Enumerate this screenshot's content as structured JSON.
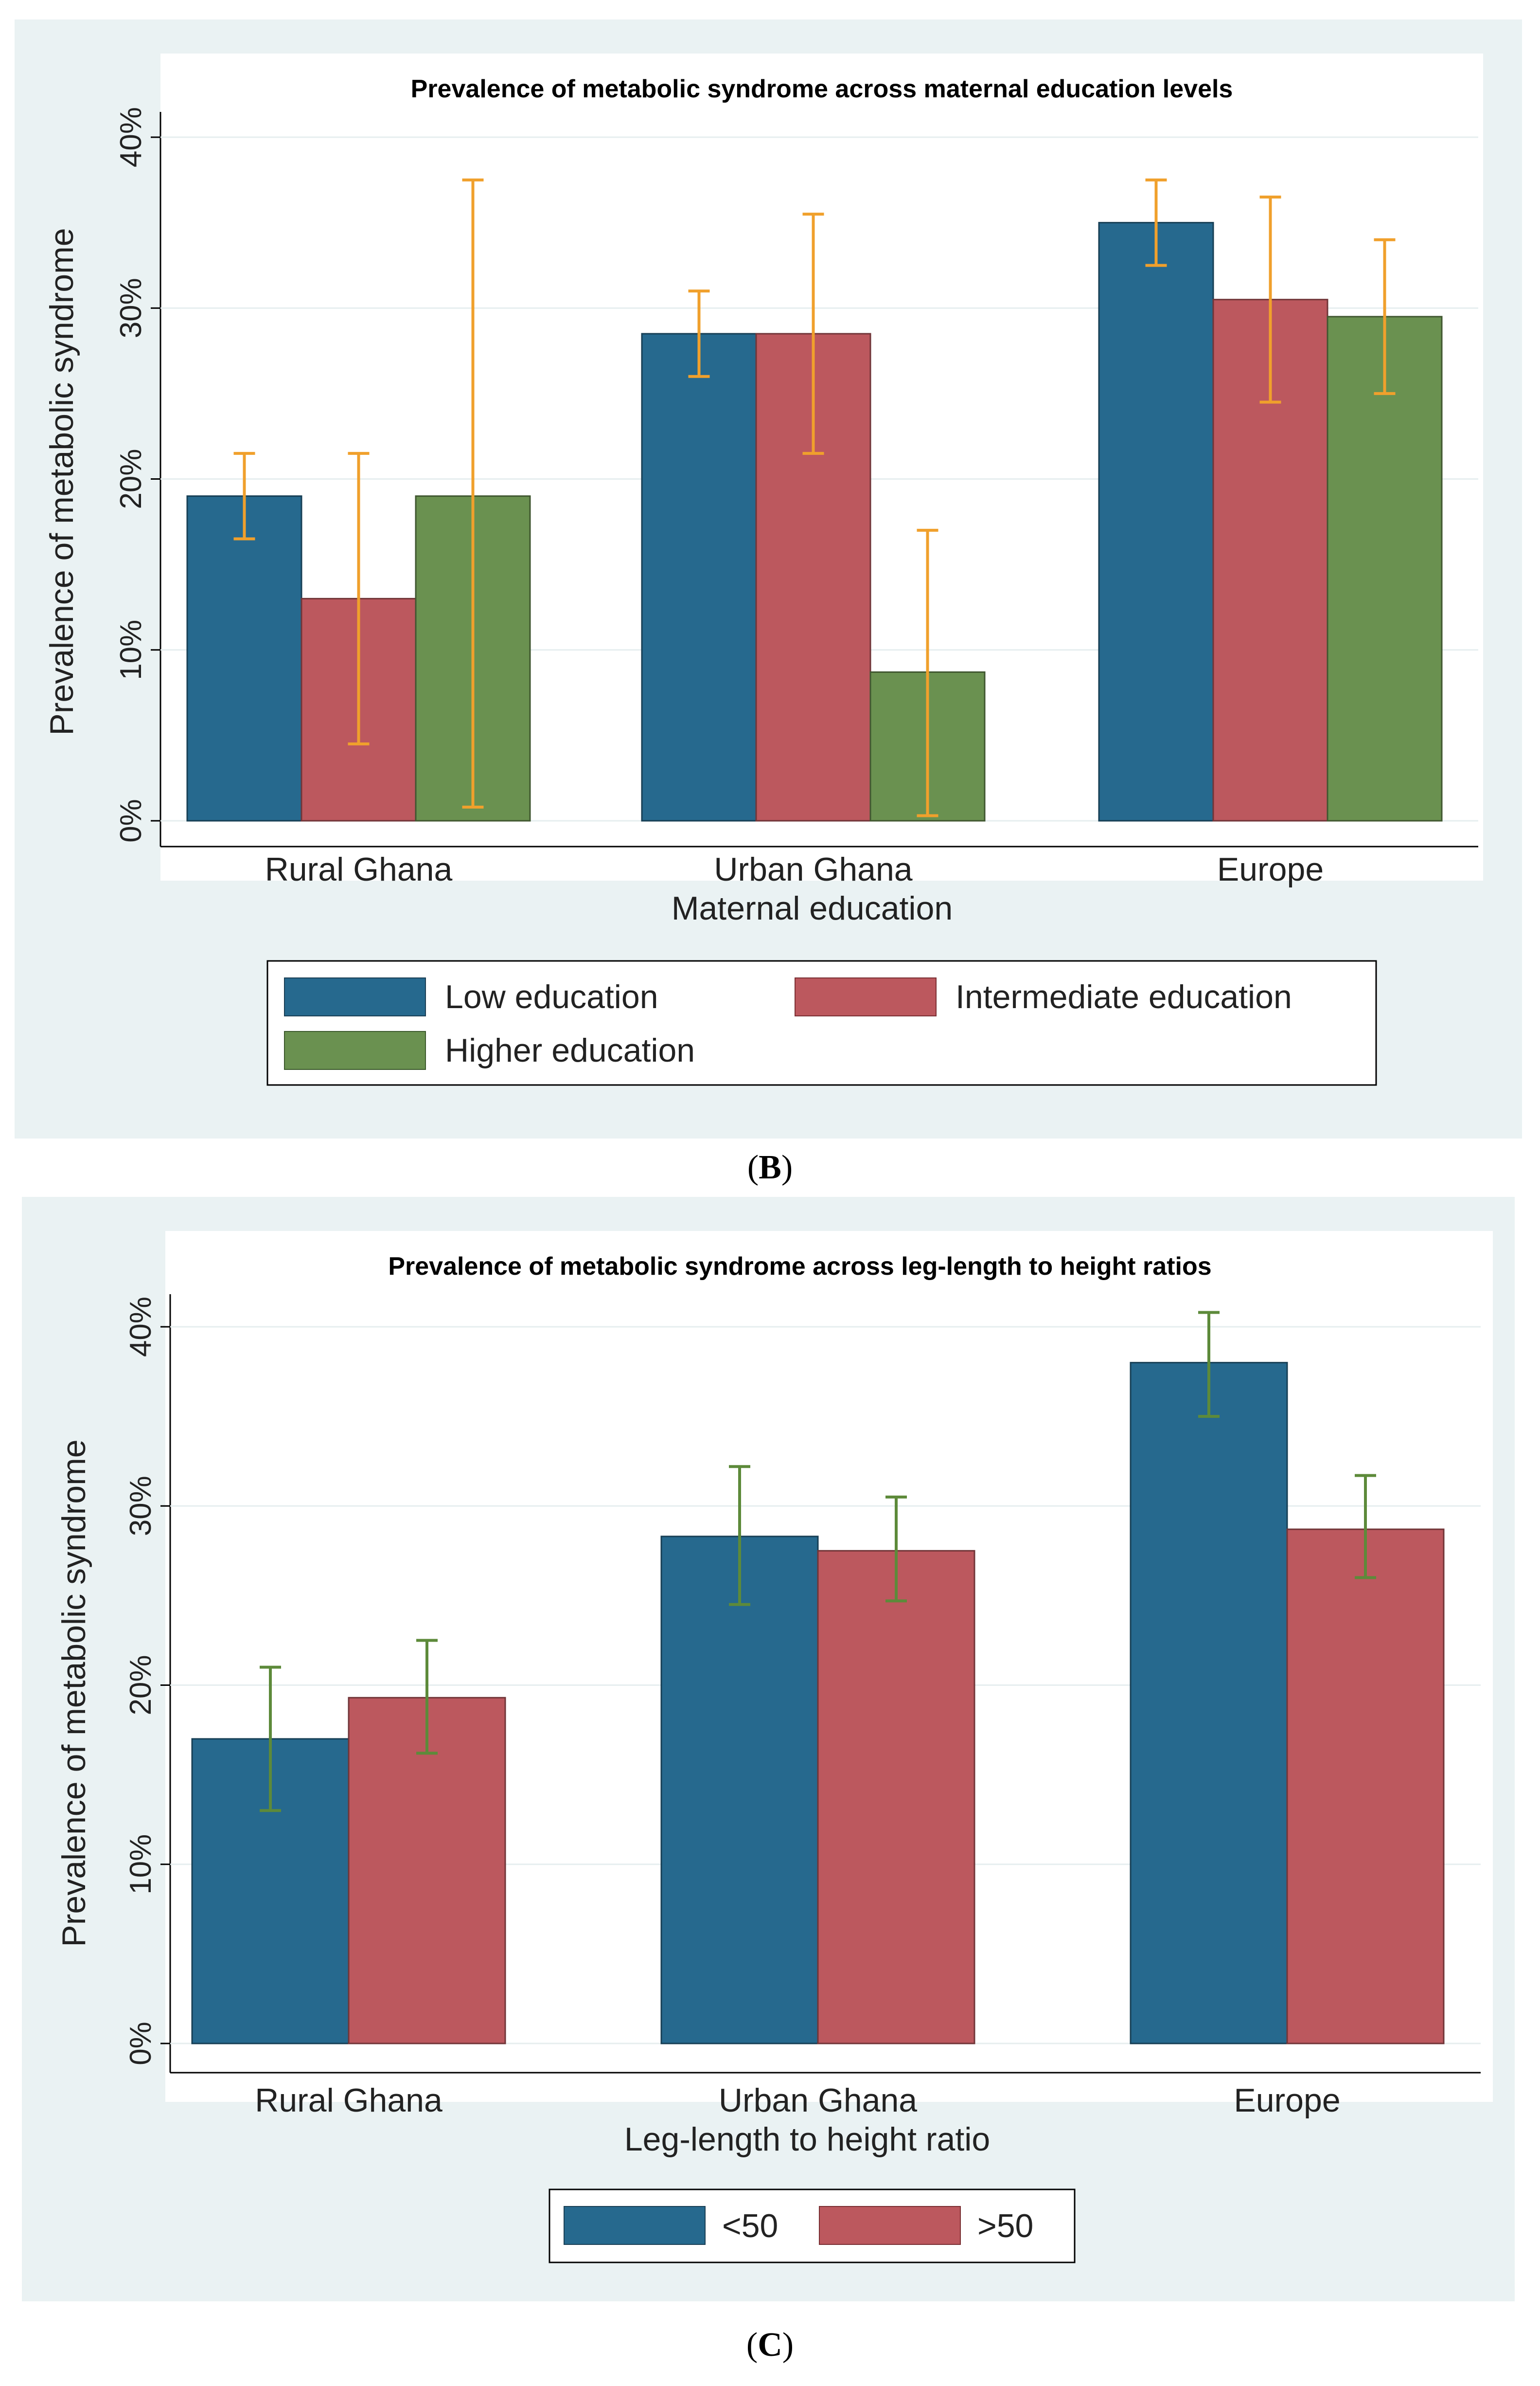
{
  "figure_captions": [
    {
      "letter": "B"
    },
    {
      "letter": "C"
    }
  ],
  "chart_data": [
    {
      "type": "bar",
      "title": "Prevalence of metabolic syndrome across maternal education levels",
      "xlabel": "Maternal education",
      "ylabel": "Prevalence of metabolic syndrome",
      "ylim": [
        0,
        40
      ],
      "yticks": [
        "0%",
        "10%",
        "20%",
        "30%",
        "40%"
      ],
      "grid": true,
      "categories": [
        "Rural Ghana",
        "Urban Ghana",
        "Europe"
      ],
      "series": [
        {
          "name": "Low education",
          "color": "#26698e",
          "values": [
            19,
            28.5,
            35
          ],
          "ci_low": [
            16.5,
            26,
            32.5
          ],
          "ci_high": [
            21.5,
            31,
            37.5
          ]
        },
        {
          "name": "Intermediate education",
          "color": "#bc585e",
          "values": [
            13,
            28.5,
            30.5
          ],
          "ci_low": [
            4.5,
            21.5,
            24.5
          ],
          "ci_high": [
            21.5,
            35.5,
            36.5
          ]
        },
        {
          "name": "Higher education",
          "color": "#6a9150",
          "values": [
            19,
            8.7,
            29.5
          ],
          "ci_low": [
            0.8,
            0.3,
            25
          ],
          "ci_high": [
            37.5,
            17,
            34
          ]
        }
      ],
      "errorbar_color": "#f0a02c",
      "legend": {
        "position": "bottom",
        "columns": 2
      }
    },
    {
      "type": "bar",
      "title": "Prevalence of metabolic syndrome across leg-length to height ratios",
      "xlabel": "Leg-length to height ratio",
      "ylabel": "Prevalence of metabolic syndrome",
      "ylim": [
        0,
        40
      ],
      "yticks": [
        "0%",
        "10%",
        "20%",
        "30%",
        "40%"
      ],
      "grid": true,
      "categories": [
        "Rural Ghana",
        "Urban Ghana",
        "Europe"
      ],
      "series": [
        {
          "name": "<50",
          "color": "#26698e",
          "values": [
            17,
            28.3,
            38
          ],
          "ci_low": [
            13,
            24.5,
            35
          ],
          "ci_high": [
            21,
            32.2,
            40.8
          ]
        },
        {
          "name": ">50",
          "color": "#bc585e",
          "values": [
            19.3,
            27.5,
            28.7
          ],
          "ci_low": [
            16.2,
            24.7,
            26
          ],
          "ci_high": [
            22.5,
            30.5,
            31.7
          ]
        }
      ],
      "errorbar_color": "#5d8a3a",
      "legend": {
        "position": "bottom",
        "columns": 2
      }
    }
  ]
}
